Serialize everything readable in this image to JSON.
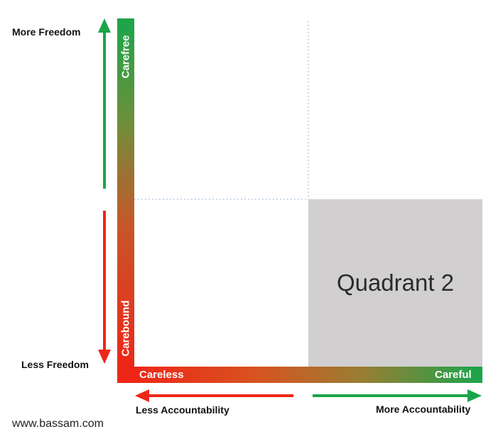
{
  "labels": {
    "more_freedom": "More Freedom",
    "less_freedom": "Less Freedom",
    "less_accountability": "Less Accountability",
    "more_accountability": "More Accountability"
  },
  "y_bar": {
    "top_label": "Carefree",
    "bottom_label": "Carebound"
  },
  "x_bar": {
    "left_label": "Careless",
    "right_label": "Careful"
  },
  "quadrant": {
    "label": "Quadrant 2"
  },
  "watermark": "www.bassam.com",
  "colors": {
    "green": "#1aa54b",
    "red": "#ee2618",
    "quadrant_gray": "#d1cfd0",
    "guide_blue": "#9ab8d8"
  }
}
